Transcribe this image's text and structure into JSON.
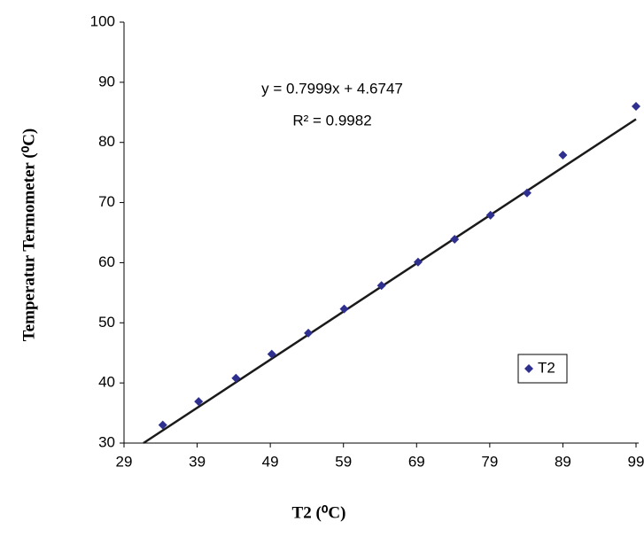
{
  "chart_data": {
    "type": "scatter",
    "x_label": "T2 (⁰C)",
    "y_label": "Temperatur Termometer (⁰C)",
    "series": [
      {
        "name": "T2",
        "color": "#2e2f8f",
        "x": [
          34.3,
          39.2,
          44.3,
          49.2,
          54.2,
          59.1,
          64.2,
          69.2,
          74.2,
          79.1,
          84.1,
          89.0,
          99.0
        ],
        "values": [
          33.0,
          36.9,
          40.8,
          44.8,
          48.3,
          52.3,
          56.2,
          60.1,
          63.9,
          67.9,
          71.6,
          77.9,
          86.0
        ]
      }
    ],
    "trendline": {
      "slope": 0.7999,
      "intercept": 4.6747,
      "color": "#1a1a1a",
      "equation": "y = 0.7999x + 4.6747",
      "r2_label": "R² = 0.9982"
    },
    "xlim": [
      29,
      99
    ],
    "xticks": [
      29,
      39,
      49,
      59,
      69,
      79,
      89,
      99
    ],
    "ylim": [
      30,
      100
    ],
    "yticks": [
      30,
      40,
      50,
      60,
      70,
      80,
      90,
      100
    ],
    "legend_position": "lower right"
  }
}
